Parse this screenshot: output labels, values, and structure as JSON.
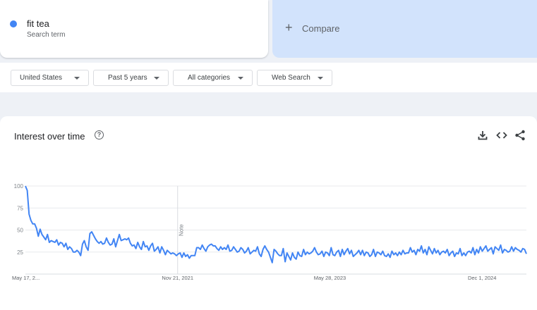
{
  "search_term": {
    "name": "fit tea",
    "subtitle": "Search term",
    "color": "#4285f4"
  },
  "compare": {
    "label": "Compare"
  },
  "filters": [
    {
      "label": "United States"
    },
    {
      "label": "Past 5 years"
    },
    {
      "label": "All categories"
    },
    {
      "label": "Web Search"
    }
  ],
  "chart_header": {
    "title": "Interest over time",
    "icons": [
      "download-icon",
      "embed-code-icon",
      "share-icon"
    ]
  },
  "chart_data": {
    "type": "line",
    "yticks": [
      100,
      75,
      50,
      25
    ],
    "ylim": [
      0,
      100
    ],
    "xticks": [
      "May 17, 2...",
      "Nov 21, 2021",
      "May 28, 2023",
      "Dec 1, 2024"
    ],
    "note_label": "Note",
    "grid": true,
    "series": [
      {
        "color": "#4285f4",
        "values": [
          100,
          95,
          68,
          61,
          57,
          57,
          52,
          43,
          51,
          45,
          42,
          39,
          45,
          36,
          38,
          37,
          36,
          39,
          33,
          36,
          35,
          31,
          35,
          28,
          31,
          29,
          25,
          25,
          27,
          25,
          21,
          34,
          38,
          31,
          27,
          46,
          48,
          44,
          40,
          37,
          35,
          37,
          34,
          35,
          41,
          36,
          33,
          34,
          40,
          31,
          38,
          45,
          38,
          39,
          40,
          39,
          41,
          35,
          32,
          33,
          29,
          36,
          31,
          28,
          37,
          31,
          32,
          27,
          32,
          35,
          26,
          28,
          31,
          24,
          31,
          27,
          22,
          27,
          25,
          23,
          24,
          23,
          21,
          23,
          24,
          19,
          24,
          20,
          22,
          18,
          21,
          21,
          21,
          30,
          30,
          28,
          33,
          29,
          26,
          31,
          33,
          34,
          32,
          32,
          29,
          27,
          31,
          28,
          30,
          28,
          33,
          26,
          27,
          31,
          28,
          25,
          26,
          30,
          28,
          24,
          26,
          30,
          23,
          25,
          27,
          26,
          31,
          23,
          20,
          28,
          32,
          28,
          25,
          19,
          13,
          28,
          26,
          23,
          21,
          21,
          29,
          14,
          24,
          20,
          16,
          24,
          19,
          17,
          25,
          21,
          20,
          28,
          22,
          25,
          23,
          24,
          26,
          30,
          25,
          22,
          23,
          26,
          20,
          25,
          24,
          21,
          30,
          22,
          21,
          25,
          27,
          20,
          28,
          22,
          26,
          29,
          23,
          27,
          20,
          22,
          24,
          27,
          22,
          27,
          21,
          25,
          24,
          20,
          22,
          28,
          20,
          25,
          24,
          22,
          26,
          21,
          20,
          23,
          19,
          26,
          22,
          24,
          21,
          25,
          22,
          27,
          23,
          24,
          24,
          30,
          25,
          27,
          22,
          28,
          26,
          32,
          24,
          28,
          22,
          31,
          27,
          23,
          29,
          24,
          27,
          22,
          25,
          26,
          24,
          28,
          21,
          24,
          26,
          20,
          24,
          23,
          29,
          21,
          24,
          21,
          25,
          26,
          24,
          30,
          22,
          28,
          24,
          31,
          26,
          29,
          32,
          26,
          28,
          30,
          23,
          31,
          29,
          27,
          33,
          24,
          28,
          27,
          25,
          26,
          31,
          26,
          30,
          28,
          27,
          25,
          29,
          28,
          23
        ],
        "x_start": "2020-05-17",
        "x_end": "2025-05-11"
      }
    ]
  }
}
